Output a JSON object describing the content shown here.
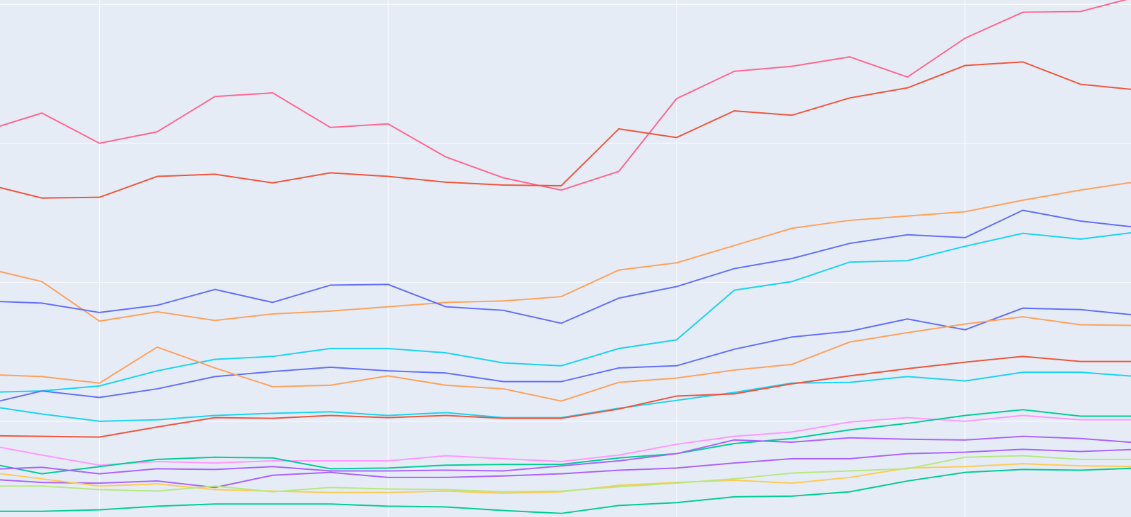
{
  "chart_data": {
    "type": "line",
    "x": [
      0,
      1,
      2,
      3,
      4,
      5,
      6,
      7,
      8,
      9,
      10,
      11,
      12,
      13,
      14,
      15,
      16,
      17,
      18,
      19,
      20
    ],
    "xlim": [
      0.275,
      19.875
    ],
    "ylim": [
      0,
      718
    ],
    "xticks": [
      2,
      7,
      12,
      17
    ],
    "yticks": [
      133,
      326,
      519,
      712
    ],
    "grid": true,
    "series": [
      {
        "color": "#FF6692",
        "values": [
          536,
          561,
          519,
          535,
          584,
          589,
          541,
          546,
          500,
          471,
          454,
          480,
          581,
          619,
          626,
          639,
          611,
          665,
          701,
          702,
          723
        ]
      },
      {
        "color": "#EF553B",
        "values": [
          463,
          443,
          444,
          473,
          476,
          464,
          478,
          473,
          465,
          461,
          460,
          539,
          527,
          564,
          558,
          582,
          596,
          627,
          632,
          601,
          593
        ]
      },
      {
        "color": "#FFA15A",
        "values": [
          346,
          327,
          272,
          285,
          273,
          282,
          286,
          292,
          298,
          300,
          306,
          343,
          353,
          377,
          401,
          412,
          418,
          424,
          440,
          454,
          466
        ]
      },
      {
        "color": "#636EFA",
        "values": [
          300,
          297,
          284,
          294,
          316,
          298,
          322,
          323,
          292,
          287,
          269,
          304,
          320,
          345,
          359,
          380,
          392,
          388,
          426,
          411,
          402
        ]
      },
      {
        "color": "#19D3F3",
        "values": [
          173,
          175,
          182,
          203,
          219,
          223,
          234,
          234,
          228,
          214,
          210,
          234,
          246,
          315,
          327,
          354,
          356,
          376,
          394,
          386,
          396
        ]
      },
      {
        "color": "#636EFA",
        "values": [
          156,
          175,
          166,
          178,
          195,
          202,
          208,
          203,
          200,
          188,
          188,
          207,
          210,
          233,
          250,
          258,
          275,
          260,
          290,
          288,
          280
        ]
      },
      {
        "color": "#FFA15A",
        "values": [
          198,
          195,
          186,
          236,
          207,
          181,
          183,
          196,
          183,
          178,
          161,
          187,
          193,
          204,
          212,
          243,
          256,
          268,
          278,
          267,
          266
        ]
      },
      {
        "color": "#19D3F3",
        "values": [
          155,
          143,
          133,
          135,
          141,
          144,
          146,
          141,
          145,
          138,
          138,
          151,
          162,
          173,
          186,
          187,
          195,
          189,
          201,
          201,
          195
        ]
      },
      {
        "color": "#EF553B",
        "values": [
          113,
          112,
          111,
          125,
          138,
          137,
          141,
          138,
          141,
          137,
          137,
          150,
          168,
          171,
          185,
          196,
          206,
          215,
          223,
          216,
          216
        ]
      },
      {
        "color": "#FF97FF",
        "values": [
          101,
          86,
          72,
          77,
          75,
          78,
          78,
          78,
          85,
          81,
          77,
          86,
          101,
          112,
          118,
          132,
          138,
          133,
          141,
          135,
          135
        ]
      },
      {
        "color": "#00CC96",
        "values": [
          76,
          60,
          70,
          80,
          83,
          82,
          67,
          68,
          72,
          73,
          73,
          82,
          88,
          102,
          109,
          121,
          130,
          141,
          149,
          140,
          140
        ]
      },
      {
        "color": "#AB63FA",
        "values": [
          66,
          69,
          60,
          67,
          66,
          70,
          64,
          64,
          65,
          64,
          71,
          78,
          88,
          107,
          104,
          110,
          108,
          107,
          112,
          109,
          103
        ]
      },
      {
        "color": "#AB63FA",
        "values": [
          53,
          48,
          47,
          50,
          41,
          58,
          62,
          55,
          55,
          57,
          60,
          65,
          68,
          75,
          81,
          81,
          88,
          90,
          94,
          91,
          94
        ]
      },
      {
        "color": "#FECB52",
        "values": [
          63,
          53,
          43,
          46,
          38,
          36,
          34,
          34,
          36,
          33,
          35,
          44,
          48,
          51,
          47,
          55,
          68,
          70,
          74,
          71,
          70
        ]
      },
      {
        "color": "#B6E880",
        "values": [
          43,
          43,
          38,
          36,
          43,
          35,
          41,
          39,
          38,
          35,
          36,
          42,
          47,
          53,
          61,
          64,
          67,
          83,
          85,
          80,
          80
        ]
      },
      {
        "color": "#00CC96",
        "values": [
          8,
          8,
          10,
          15,
          18,
          18,
          18,
          15,
          14,
          9,
          5,
          16,
          20,
          28,
          29,
          35,
          50,
          62,
          66,
          65,
          68
        ]
      }
    ]
  }
}
